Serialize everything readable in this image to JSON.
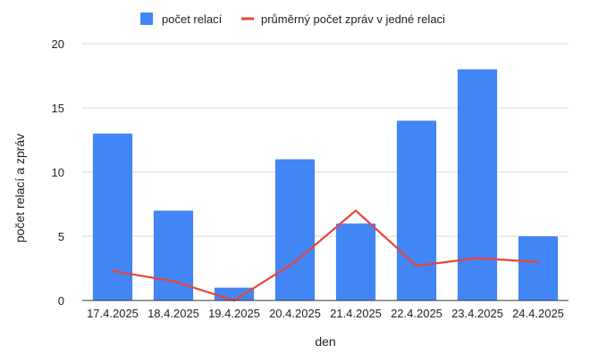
{
  "chart_data": {
    "type": "bar",
    "categories": [
      "17.4.2025",
      "18.4.2025",
      "19.4.2025",
      "20.4.2025",
      "21.4.2025",
      "22.4.2025",
      "23.4.2025",
      "24.4.2025"
    ],
    "series": [
      {
        "name": "počet relací",
        "type": "bar",
        "color": "#4285f4",
        "values": [
          13,
          7,
          1,
          11,
          6,
          14,
          18,
          5
        ]
      },
      {
        "name": "průměrný počet zpráv v jedné relaci",
        "type": "line",
        "color": "#ea4335",
        "values": [
          2.3,
          1.5,
          0,
          3,
          7,
          2.7,
          3.3,
          3
        ]
      }
    ],
    "xlabel": "den",
    "ylabel": "počet relací a zpráv",
    "ylim": [
      0,
      20
    ],
    "yticks": [
      0,
      5,
      10,
      15,
      20
    ],
    "grid": true,
    "legend_position": "top"
  }
}
